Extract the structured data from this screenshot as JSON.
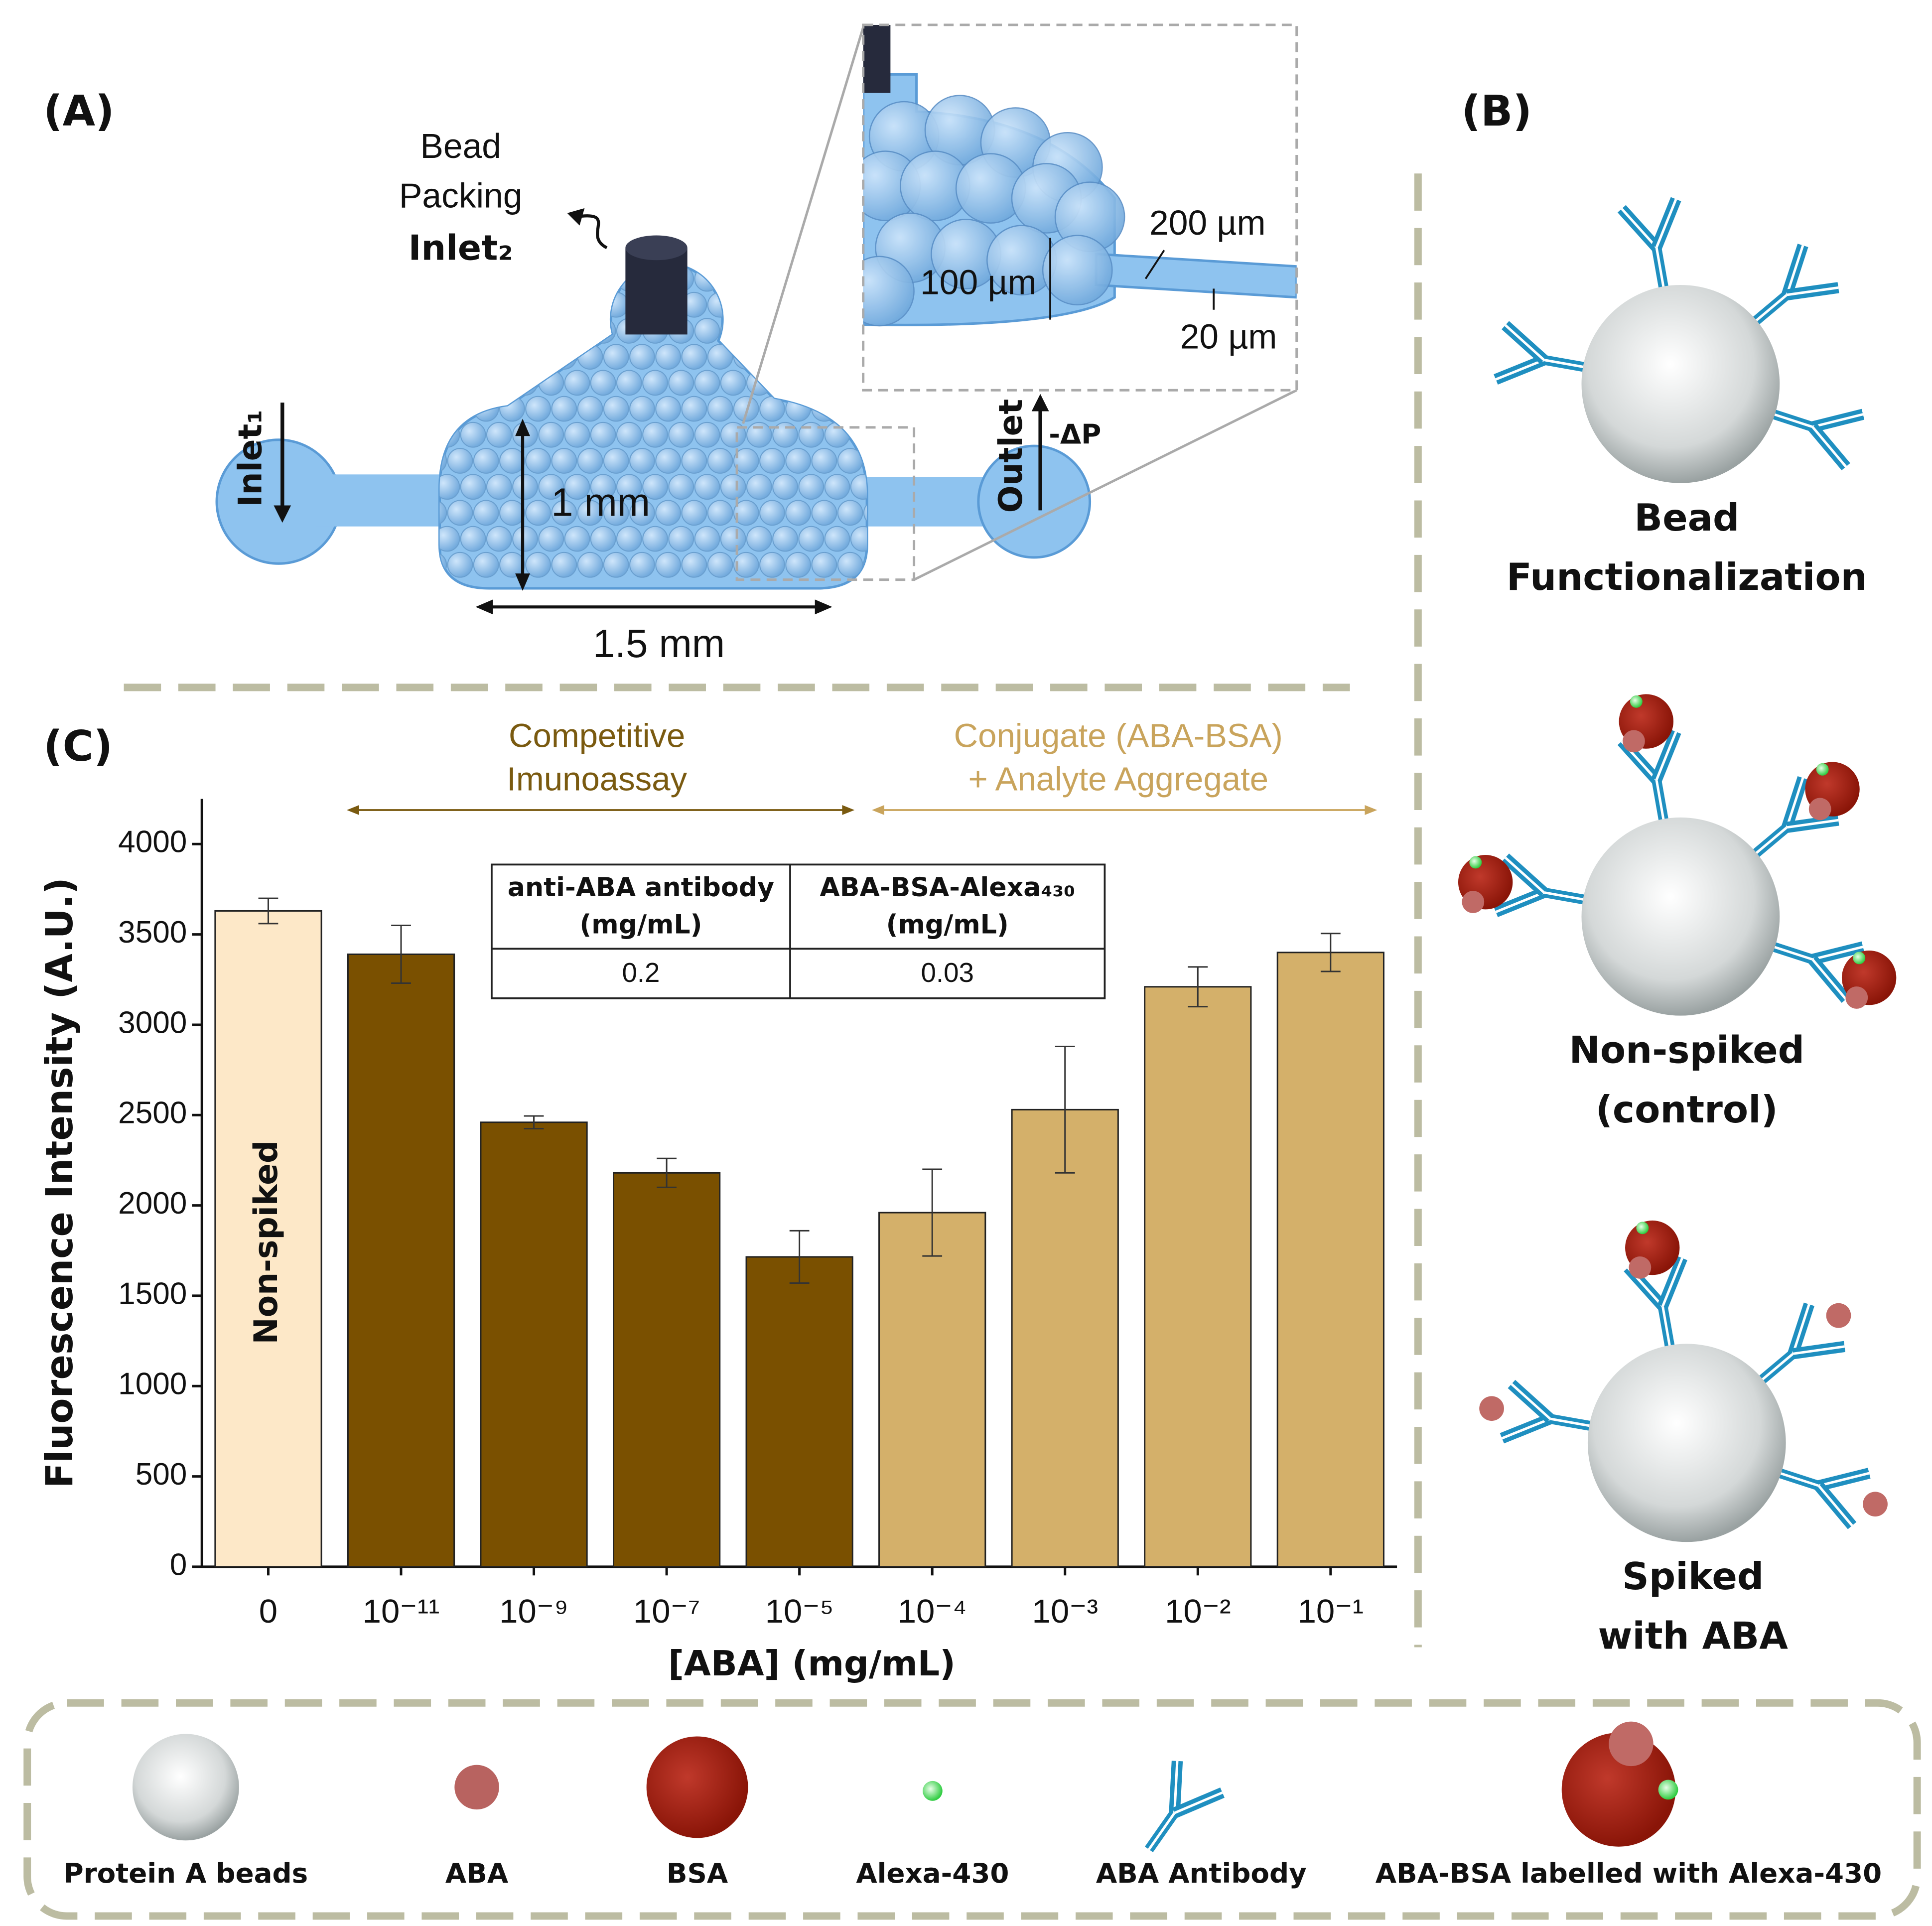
{
  "panel_labels": {
    "a": "(A)",
    "b": "(B)",
    "c": "(C)"
  },
  "panel_a": {
    "inlet2_lines": [
      "Bead",
      "Packing"
    ],
    "inlet2": "Inlet₂",
    "inlet1": "Inlet₁",
    "outlet": "Outlet",
    "pressure": "-ΔP",
    "height": "1 mm",
    "width": "1.5 mm",
    "inset": {
      "channel_width": "200 µm",
      "chamber_height": "100 µm",
      "channel_height": "20 µm"
    }
  },
  "panel_b": {
    "states": [
      {
        "lines": [
          "Bead",
          "Functionalization"
        ]
      },
      {
        "lines": [
          "Non-spiked",
          "(control)"
        ]
      },
      {
        "lines": [
          "Spiked",
          "with ABA"
        ]
      }
    ]
  },
  "chart_data": {
    "type": "bar",
    "xlabel": "[ABA] (mg/mL)",
    "ylabel": "Fluorescence Intensity (A.U.)",
    "categories": [
      "0",
      "10⁻¹¹",
      "10⁻⁹",
      "10⁻⁷",
      "10⁻⁵",
      "10⁻⁴",
      "10⁻³",
      "10⁻²",
      "10⁻¹"
    ],
    "values": [
      3630,
      3390,
      2460,
      2180,
      1715,
      1960,
      2530,
      3210,
      3400
    ],
    "errors": [
      70,
      160,
      35,
      80,
      145,
      240,
      350,
      110,
      105
    ],
    "colors": [
      "#fde8c8",
      "#7a5000",
      "#7a5000",
      "#7a5000",
      "#7a5000",
      "#d4b06a",
      "#d4b06a",
      "#d4b06a",
      "#d4b06a"
    ],
    "ylim": [
      0,
      4250
    ],
    "yticks": [
      0,
      500,
      1000,
      1500,
      2000,
      2500,
      3000,
      3500,
      4000
    ],
    "bar_annotation": "Non-spiked",
    "annotations": [
      {
        "lines": [
          "Competitive",
          "Imunoassay"
        ],
        "color": "#7a5a10"
      },
      {
        "lines": [
          "Conjugate (ABA-BSA)",
          "+ Analyte Aggregate"
        ],
        "color": "#c9a45c"
      }
    ],
    "table": {
      "header": [
        [
          "anti-ABA antibody",
          "(mg/mL)"
        ],
        [
          "ABA-BSA-Alexa₄₃₀",
          "(mg/mL)"
        ]
      ],
      "rows": [
        [
          "0.2",
          "0.03"
        ]
      ]
    }
  },
  "legend": {
    "items": [
      "Protein A beads",
      "ABA",
      "BSA",
      "Alexa-430",
      "ABA Antibody",
      "ABA-BSA labelled with Alexa-430"
    ]
  }
}
